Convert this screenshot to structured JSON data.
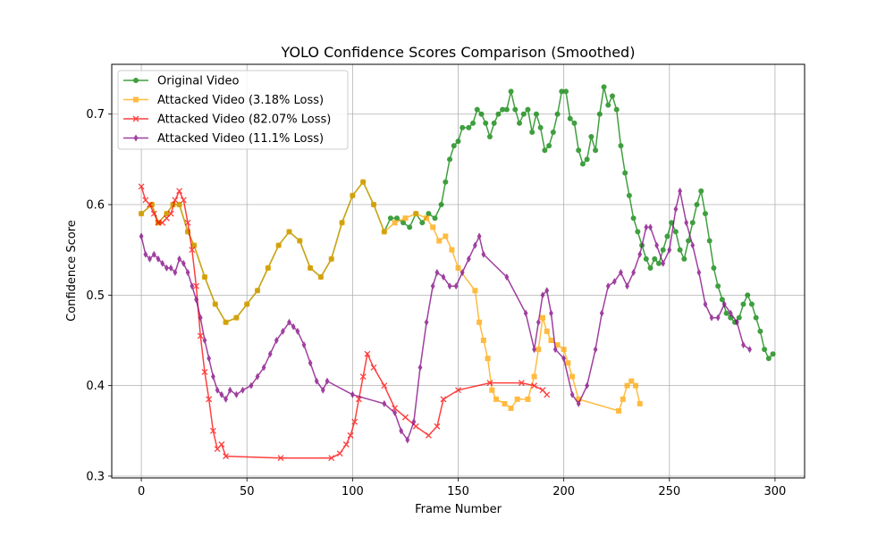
{
  "chart_data": {
    "type": "line",
    "title": "YOLO Confidence Scores Comparison (Smoothed)",
    "xlabel": "Frame Number",
    "ylabel": "Confidence Score",
    "xlim": [
      -14,
      314
    ],
    "ylim": [
      0.298,
      0.755
    ],
    "xticks": [
      0,
      50,
      100,
      150,
      200,
      250,
      300
    ],
    "yticks": [
      0.3,
      0.4,
      0.5,
      0.6,
      0.7
    ],
    "grid": true,
    "legend_position": "top-left",
    "series": [
      {
        "name": "Original Video",
        "color": "#008000",
        "marker": "circle",
        "points": [
          [
            0,
            0.59
          ],
          [
            5,
            0.6
          ],
          [
            8,
            0.58
          ],
          [
            12,
            0.59
          ],
          [
            15,
            0.6
          ],
          [
            18,
            0.6
          ],
          [
            22,
            0.57
          ],
          [
            25,
            0.555
          ],
          [
            30,
            0.52
          ],
          [
            35,
            0.49
          ],
          [
            40,
            0.47
          ],
          [
            45,
            0.475
          ],
          [
            50,
            0.49
          ],
          [
            55,
            0.505
          ],
          [
            60,
            0.53
          ],
          [
            65,
            0.555
          ],
          [
            70,
            0.57
          ],
          [
            75,
            0.56
          ],
          [
            80,
            0.53
          ],
          [
            85,
            0.52
          ],
          [
            90,
            0.54
          ],
          [
            95,
            0.58
          ],
          [
            100,
            0.61
          ],
          [
            105,
            0.625
          ],
          [
            110,
            0.6
          ],
          [
            115,
            0.57
          ],
          [
            118,
            0.585
          ],
          [
            121,
            0.585
          ],
          [
            124,
            0.58
          ],
          [
            127,
            0.575
          ],
          [
            130,
            0.59
          ],
          [
            133,
            0.58
          ],
          [
            136,
            0.59
          ],
          [
            139,
            0.585
          ],
          [
            142,
            0.6
          ],
          [
            144,
            0.625
          ],
          [
            146,
            0.65
          ],
          [
            148,
            0.665
          ],
          [
            150,
            0.67
          ],
          [
            152,
            0.685
          ],
          [
            155,
            0.685
          ],
          [
            157,
            0.69
          ],
          [
            159,
            0.705
          ],
          [
            161,
            0.7
          ],
          [
            163,
            0.69
          ],
          [
            165,
            0.675
          ],
          [
            167,
            0.69
          ],
          [
            169,
            0.7
          ],
          [
            171,
            0.705
          ],
          [
            173,
            0.705
          ],
          [
            175,
            0.725
          ],
          [
            177,
            0.705
          ],
          [
            179,
            0.69
          ],
          [
            181,
            0.7
          ],
          [
            183,
            0.705
          ],
          [
            185,
            0.68
          ],
          [
            187,
            0.7
          ],
          [
            189,
            0.685
          ],
          [
            191,
            0.66
          ],
          [
            193,
            0.665
          ],
          [
            195,
            0.68
          ],
          [
            197,
            0.7
          ],
          [
            199,
            0.725
          ],
          [
            201,
            0.725
          ],
          [
            203,
            0.695
          ],
          [
            205,
            0.69
          ],
          [
            207,
            0.66
          ],
          [
            209,
            0.645
          ],
          [
            211,
            0.65
          ],
          [
            213,
            0.675
          ],
          [
            215,
            0.66
          ],
          [
            217,
            0.7
          ],
          [
            219,
            0.73
          ],
          [
            221,
            0.71
          ],
          [
            223,
            0.72
          ],
          [
            225,
            0.705
          ],
          [
            227,
            0.665
          ],
          [
            229,
            0.635
          ],
          [
            231,
            0.61
          ],
          [
            233,
            0.585
          ],
          [
            235,
            0.57
          ],
          [
            237,
            0.555
          ],
          [
            239,
            0.54
          ],
          [
            241,
            0.53
          ],
          [
            243,
            0.54
          ],
          [
            245,
            0.535
          ],
          [
            247,
            0.55
          ],
          [
            249,
            0.565
          ],
          [
            251,
            0.58
          ],
          [
            253,
            0.57
          ],
          [
            255,
            0.55
          ],
          [
            257,
            0.54
          ],
          [
            259,
            0.56
          ],
          [
            261,
            0.58
          ],
          [
            263,
            0.6
          ],
          [
            265,
            0.615
          ],
          [
            267,
            0.59
          ],
          [
            269,
            0.56
          ],
          [
            271,
            0.53
          ],
          [
            273,
            0.51
          ],
          [
            275,
            0.495
          ],
          [
            277,
            0.48
          ],
          [
            279,
            0.475
          ],
          [
            281,
            0.47
          ],
          [
            283,
            0.475
          ],
          [
            285,
            0.49
          ],
          [
            287,
            0.5
          ],
          [
            289,
            0.49
          ],
          [
            291,
            0.475
          ],
          [
            293,
            0.46
          ],
          [
            295,
            0.44
          ],
          [
            297,
            0.43
          ],
          [
            299,
            0.435
          ]
        ]
      },
      {
        "name": "Attacked Video (3.18% Loss)",
        "color": "#ffa500",
        "marker": "square",
        "points": [
          [
            0,
            0.59
          ],
          [
            5,
            0.6
          ],
          [
            8,
            0.58
          ],
          [
            12,
            0.59
          ],
          [
            15,
            0.6
          ],
          [
            18,
            0.6
          ],
          [
            22,
            0.57
          ],
          [
            25,
            0.555
          ],
          [
            30,
            0.52
          ],
          [
            35,
            0.49
          ],
          [
            40,
            0.47
          ],
          [
            45,
            0.475
          ],
          [
            50,
            0.49
          ],
          [
            55,
            0.505
          ],
          [
            60,
            0.53
          ],
          [
            65,
            0.555
          ],
          [
            70,
            0.57
          ],
          [
            75,
            0.56
          ],
          [
            80,
            0.53
          ],
          [
            85,
            0.52
          ],
          [
            90,
            0.54
          ],
          [
            95,
            0.58
          ],
          [
            100,
            0.61
          ],
          [
            105,
            0.625
          ],
          [
            110,
            0.6
          ],
          [
            115,
            0.57
          ],
          [
            120,
            0.58
          ],
          [
            125,
            0.585
          ],
          [
            130,
            0.59
          ],
          [
            135,
            0.585
          ],
          [
            138,
            0.575
          ],
          [
            141,
            0.56
          ],
          [
            144,
            0.565
          ],
          [
            147,
            0.55
          ],
          [
            150,
            0.53
          ],
          [
            158,
            0.505
          ],
          [
            160,
            0.47
          ],
          [
            162,
            0.45
          ],
          [
            164,
            0.43
          ],
          [
            166,
            0.395
          ],
          [
            168,
            0.385
          ],
          [
            172,
            0.38
          ],
          [
            175,
            0.375
          ],
          [
            178,
            0.385
          ],
          [
            183,
            0.385
          ],
          [
            186,
            0.41
          ],
          [
            188,
            0.44
          ],
          [
            190,
            0.475
          ],
          [
            192,
            0.46
          ],
          [
            194,
            0.45
          ],
          [
            197,
            0.445
          ],
          [
            200,
            0.44
          ],
          [
            202,
            0.425
          ],
          [
            204,
            0.41
          ],
          [
            207,
            0.385
          ],
          [
            226,
            0.372
          ],
          [
            228,
            0.385
          ],
          [
            230,
            0.4
          ],
          [
            232,
            0.405
          ],
          [
            234,
            0.4
          ],
          [
            236,
            0.38
          ]
        ]
      },
      {
        "name": "Attacked Video (82.07% Loss)",
        "color": "#ff0000",
        "marker": "x",
        "points": [
          [
            0,
            0.62
          ],
          [
            2,
            0.605
          ],
          [
            4,
            0.6
          ],
          [
            6,
            0.59
          ],
          [
            8,
            0.58
          ],
          [
            10,
            0.58
          ],
          [
            12,
            0.585
          ],
          [
            14,
            0.59
          ],
          [
            16,
            0.605
          ],
          [
            18,
            0.615
          ],
          [
            20,
            0.605
          ],
          [
            22,
            0.58
          ],
          [
            24,
            0.55
          ],
          [
            26,
            0.51
          ],
          [
            28,
            0.455
          ],
          [
            30,
            0.415
          ],
          [
            32,
            0.385
          ],
          [
            34,
            0.35
          ],
          [
            36,
            0.33
          ],
          [
            38,
            0.335
          ],
          [
            40,
            0.322
          ],
          [
            66,
            0.32
          ],
          [
            90,
            0.32
          ],
          [
            94,
            0.325
          ],
          [
            97,
            0.335
          ],
          [
            99,
            0.345
          ],
          [
            101,
            0.36
          ],
          [
            103,
            0.385
          ],
          [
            105,
            0.41
          ],
          [
            107,
            0.435
          ],
          [
            110,
            0.42
          ],
          [
            115,
            0.4
          ],
          [
            120,
            0.375
          ],
          [
            125,
            0.365
          ],
          [
            130,
            0.355
          ],
          [
            136,
            0.345
          ],
          [
            140,
            0.355
          ],
          [
            143,
            0.385
          ],
          [
            150,
            0.395
          ],
          [
            165,
            0.403
          ],
          [
            180,
            0.403
          ],
          [
            186,
            0.4
          ],
          [
            190,
            0.395
          ],
          [
            192,
            0.39
          ]
        ]
      },
      {
        "name": "Attacked Video (11.1% Loss)",
        "color": "#800080",
        "marker": "diamond",
        "points": [
          [
            0,
            0.565
          ],
          [
            2,
            0.545
          ],
          [
            4,
            0.54
          ],
          [
            6,
            0.545
          ],
          [
            8,
            0.54
          ],
          [
            10,
            0.535
          ],
          [
            12,
            0.53
          ],
          [
            14,
            0.53
          ],
          [
            16,
            0.525
          ],
          [
            18,
            0.54
          ],
          [
            20,
            0.535
          ],
          [
            22,
            0.525
          ],
          [
            24,
            0.51
          ],
          [
            26,
            0.495
          ],
          [
            28,
            0.475
          ],
          [
            30,
            0.45
          ],
          [
            32,
            0.43
          ],
          [
            34,
            0.41
          ],
          [
            36,
            0.395
          ],
          [
            38,
            0.39
          ],
          [
            40,
            0.385
          ],
          [
            42,
            0.395
          ],
          [
            45,
            0.39
          ],
          [
            48,
            0.395
          ],
          [
            52,
            0.4
          ],
          [
            55,
            0.41
          ],
          [
            58,
            0.42
          ],
          [
            61,
            0.435
          ],
          [
            64,
            0.45
          ],
          [
            67,
            0.46
          ],
          [
            70,
            0.47
          ],
          [
            72,
            0.465
          ],
          [
            74,
            0.46
          ],
          [
            77,
            0.445
          ],
          [
            80,
            0.425
          ],
          [
            83,
            0.405
          ],
          [
            86,
            0.395
          ],
          [
            88,
            0.405
          ],
          [
            100,
            0.39
          ],
          [
            115,
            0.38
          ],
          [
            120,
            0.37
          ],
          [
            123,
            0.35
          ],
          [
            126,
            0.34
          ],
          [
            129,
            0.36
          ],
          [
            132,
            0.42
          ],
          [
            135,
            0.47
          ],
          [
            138,
            0.51
          ],
          [
            140,
            0.525
          ],
          [
            143,
            0.52
          ],
          [
            146,
            0.51
          ],
          [
            149,
            0.51
          ],
          [
            152,
            0.525
          ],
          [
            155,
            0.54
          ],
          [
            158,
            0.555
          ],
          [
            160,
            0.565
          ],
          [
            162,
            0.545
          ],
          [
            173,
            0.52
          ],
          [
            182,
            0.48
          ],
          [
            186,
            0.44
          ],
          [
            188,
            0.47
          ],
          [
            190,
            0.5
          ],
          [
            192,
            0.505
          ],
          [
            194,
            0.48
          ],
          [
            196,
            0.44
          ],
          [
            200,
            0.43
          ],
          [
            204,
            0.39
          ],
          [
            207,
            0.38
          ],
          [
            211,
            0.4
          ],
          [
            215,
            0.44
          ],
          [
            218,
            0.48
          ],
          [
            221,
            0.51
          ],
          [
            224,
            0.515
          ],
          [
            227,
            0.525
          ],
          [
            230,
            0.51
          ],
          [
            233,
            0.525
          ],
          [
            236,
            0.545
          ],
          [
            239,
            0.575
          ],
          [
            241,
            0.575
          ],
          [
            244,
            0.555
          ],
          [
            247,
            0.535
          ],
          [
            250,
            0.55
          ],
          [
            253,
            0.595
          ],
          [
            255,
            0.615
          ],
          [
            258,
            0.58
          ],
          [
            261,
            0.555
          ],
          [
            264,
            0.525
          ],
          [
            267,
            0.49
          ],
          [
            270,
            0.475
          ],
          [
            273,
            0.475
          ],
          [
            276,
            0.49
          ],
          [
            279,
            0.48
          ],
          [
            282,
            0.47
          ],
          [
            285,
            0.445
          ],
          [
            288,
            0.44
          ]
        ]
      }
    ]
  }
}
